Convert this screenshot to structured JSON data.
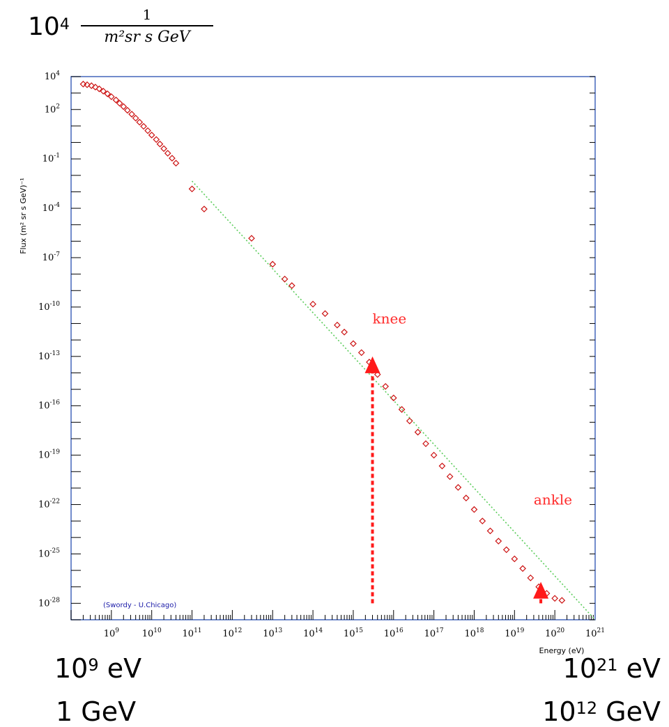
{
  "header_annotation": {
    "base": "10",
    "exponent": "4",
    "fraction_numerator": "1",
    "fraction_denominator": "m²sr s GeV"
  },
  "bottom_annotations": {
    "left_ev_base": "10",
    "left_ev_exp": "9",
    "left_ev_unit": " eV",
    "left_gev": "1 GeV",
    "right_ev_base": "10",
    "right_ev_exp": "21",
    "right_ev_unit": " eV",
    "right_gev_base": "10",
    "right_gev_exp": "12",
    "right_gev_unit": " GeV"
  },
  "chart_data": {
    "type": "scatter",
    "title": "",
    "xlabel": "Energy (eV)",
    "ylabel": "Flux (m² sr s GeV)⁻¹",
    "xscale": "log",
    "yscale": "log",
    "xlim": [
      100000000.0,
      1e+21
    ],
    "ylim": [
      1e-29,
      10000.0
    ],
    "x_ticks": [
      {
        "base": "10",
        "exp": "9",
        "value": 1000000000.0
      },
      {
        "base": "10",
        "exp": "10",
        "value": 10000000000.0
      },
      {
        "base": "10",
        "exp": "11",
        "value": 100000000000.0
      },
      {
        "base": "10",
        "exp": "12",
        "value": 1000000000000.0
      },
      {
        "base": "10",
        "exp": "13",
        "value": 10000000000000.0
      },
      {
        "base": "10",
        "exp": "14",
        "value": 100000000000000.0
      },
      {
        "base": "10",
        "exp": "15",
        "value": 1000000000000000.0
      },
      {
        "base": "10",
        "exp": "16",
        "value": 1e+16
      },
      {
        "base": "10",
        "exp": "17",
        "value": 1e+17
      },
      {
        "base": "10",
        "exp": "18",
        "value": 1e+18
      },
      {
        "base": "10",
        "exp": "19",
        "value": 1e+19
      },
      {
        "base": "10",
        "exp": "20",
        "value": 1e+20
      },
      {
        "base": "10",
        "exp": "21",
        "value": 1e+21
      }
    ],
    "y_ticks": [
      {
        "base": "10",
        "exp": "4",
        "value": 10000.0
      },
      {
        "base": "10",
        "exp": "2",
        "value": 100.0
      },
      {
        "base": "10",
        "exp": "-1",
        "value": 0.1
      },
      {
        "base": "10",
        "exp": "-4",
        "value": 0.0001
      },
      {
        "base": "10",
        "exp": "-7",
        "value": 1e-07
      },
      {
        "base": "10",
        "exp": "-10",
        "value": 1e-10
      },
      {
        "base": "10",
        "exp": "-13",
        "value": 1e-13
      },
      {
        "base": "10",
        "exp": "-16",
        "value": 1e-16
      },
      {
        "base": "10",
        "exp": "-19",
        "value": 1e-19
      },
      {
        "base": "10",
        "exp": "-22",
        "value": 1e-22
      },
      {
        "base": "10",
        "exp": "-25",
        "value": 1e-25
      },
      {
        "base": "10",
        "exp": "-28",
        "value": 1e-28
      }
    ],
    "series": [
      {
        "name": "",
        "marker": "open-diamond",
        "color": "#cc1111",
        "points": [
          [
            200000000.0,
            3500
          ],
          [
            250000000.0,
            3200
          ],
          [
            320000000.0,
            2800
          ],
          [
            400000000.0,
            2300
          ],
          [
            500000000.0,
            1800
          ],
          [
            630000000.0,
            1300
          ],
          [
            800000000.0,
            900
          ],
          [
            1000000000.0,
            600
          ],
          [
            1300000000.0,
            380
          ],
          [
            1600000000.0,
            240
          ],
          [
            2000000000.0,
            150
          ],
          [
            2500000000.0,
            90
          ],
          [
            3200000000.0,
            52
          ],
          [
            4000000000.0,
            30
          ],
          [
            5000000000.0,
            17
          ],
          [
            6300000000.0,
            9.5
          ],
          [
            8000000000.0,
            5.2
          ],
          [
            10000000000.0,
            2.8
          ],
          [
            13000000000.0,
            1.5
          ],
          [
            16000000000.0,
            0.8
          ],
          [
            20000000000.0,
            0.42
          ],
          [
            25000000000.0,
            0.22
          ],
          [
            32000000000.0,
            0.11
          ],
          [
            40000000000.0,
            0.055
          ],
          [
            100000000000.0,
            0.0015
          ],
          [
            200000000000.0,
            9e-05
          ],
          [
            3000000000000.0,
            1.5e-06
          ],
          [
            10000000000000.0,
            4e-08
          ],
          [
            20000000000000.0,
            5e-09
          ],
          [
            30000000000000.0,
            2e-09
          ],
          [
            100000000000000.0,
            1.5e-10
          ],
          [
            200000000000000.0,
            4e-11
          ],
          [
            400000000000000.0,
            8e-12
          ],
          [
            600000000000000.0,
            3e-12
          ],
          [
            1000000000000000.0,
            6e-13
          ],
          [
            1600000000000000.0,
            1.7e-13
          ],
          [
            2500000000000000.0,
            4.5e-14
          ],
          [
            4000000000000000.0,
            8e-15
          ],
          [
            6300000000000000.0,
            1.5e-15
          ],
          [
            1e+16,
            3e-16
          ],
          [
            1.6e+16,
            6e-17
          ],
          [
            2.5e+16,
            1.2e-17
          ],
          [
            4e+16,
            2.5e-18
          ],
          [
            6.3e+16,
            5e-19
          ],
          [
            1e+17,
            1e-19
          ],
          [
            1.6e+17,
            2.2e-20
          ],
          [
            2.5e+17,
            5e-21
          ],
          [
            4e+17,
            1.1e-21
          ],
          [
            6.3e+17,
            2.5e-22
          ],
          [
            1e+18,
            5e-23
          ],
          [
            1.6e+18,
            1e-23
          ],
          [
            2.5e+18,
            2.5e-24
          ],
          [
            4e+18,
            6e-25
          ],
          [
            6.3e+18,
            1.8e-25
          ],
          [
            1e+19,
            5e-26
          ],
          [
            1.6e+19,
            1.3e-26
          ],
          [
            2.5e+19,
            3.5e-27
          ],
          [
            4e+19,
            1e-27
          ],
          [
            6.3e+19,
            4e-28
          ],
          [
            1e+20,
            2e-28
          ],
          [
            1.5e+20,
            1.5e-28
          ]
        ]
      }
    ],
    "reference_line": {
      "color": "#5acc5a",
      "from": [
        100000000000.0,
        0.0045
      ],
      "to": [
        1e+21,
        1e-29
      ]
    },
    "annotations": [
      {
        "text": "knee",
        "x": 3000000000000000.0,
        "y": 1e-11
      },
      {
        "text": "ankle",
        "x": 3e+19,
        "y": 1e-22
      }
    ],
    "arrows": [
      {
        "x": 3000000000000000.0,
        "y_from": 1e-28,
        "y_to": 1e-13,
        "color": "#ff1a1a"
      },
      {
        "x": 4.5e+19,
        "y_from": 1e-28,
        "y_to": 2e-27,
        "color": "#ff1a1a"
      }
    ],
    "credit": "(Swordy - U.Chicago)",
    "grid": false,
    "legend": "none"
  }
}
